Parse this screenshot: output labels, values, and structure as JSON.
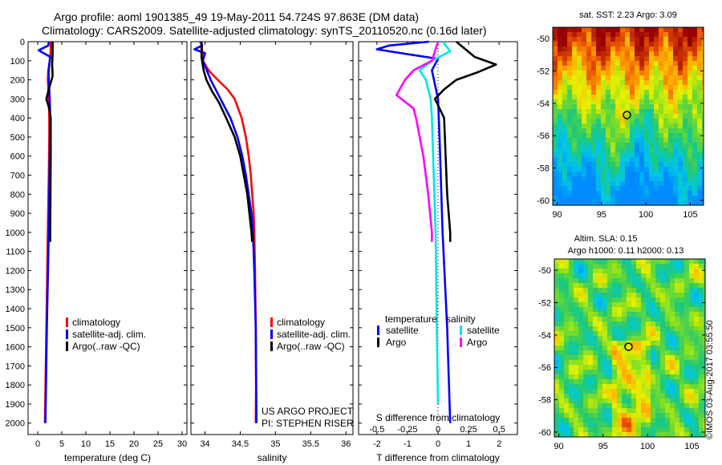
{
  "header": {
    "line1": "Argo profile: aoml 1901385_49 19-May-2011 54.724S 97.863E (DM data)",
    "line2": "Climatology: CARS2009. Satellite-adjusted climatology: synTS_20110520.nc (0.16d later)"
  },
  "credits": {
    "project": "US ARGO PROJECT",
    "pi": "PI: STEPHEN RISER",
    "imos": "©IMOS 03-Aug-2017 03:55:50"
  },
  "colors": {
    "clim": "#ff0000",
    "sat": "#0000ff",
    "argo": "#000000",
    "sat_s": "#00e5e5",
    "argo_s": "#ff00ff"
  },
  "depth_ticks": [
    "0",
    "100",
    "200",
    "300",
    "400",
    "500",
    "600",
    "700",
    "800",
    "900",
    "1000",
    "1100",
    "1200",
    "1300",
    "1400",
    "1500",
    "1600",
    "1700",
    "1800",
    "1900",
    "2000"
  ],
  "chart_data": [
    {
      "type": "line",
      "xlabel": "temperature (deg C)",
      "xlim": [
        -2,
        31
      ],
      "ylim": [
        2060,
        0
      ],
      "xticks": [
        0,
        5,
        10,
        15,
        20,
        25,
        30
      ],
      "xtick_labels": [
        "0",
        "5",
        "10",
        "15",
        "20",
        "25",
        "30"
      ],
      "legend": [
        "climatology",
        "satellite-adj. clim.",
        "Argo(..raw -QC)"
      ],
      "legend_position": "lower-center",
      "series": [
        {
          "name": "climatology",
          "color": "#ff0000",
          "depth": [
            0,
            50,
            100,
            150,
            200,
            300,
            400,
            500,
            700,
            1000,
            1500,
            2000
          ],
          "values": [
            2.7,
            2.7,
            2.5,
            2.2,
            2.1,
            2.3,
            2.4,
            2.4,
            2.3,
            2.1,
            1.8,
            1.5
          ]
        },
        {
          "name": "satellite-adj. clim.",
          "color": "#0000ff",
          "depth": [
            0,
            20,
            45,
            80,
            100,
            150,
            200,
            300,
            400,
            600,
            1000,
            1500,
            2000
          ],
          "values": [
            2.3,
            2.2,
            0.2,
            2.6,
            2.5,
            2.3,
            2.3,
            2.5,
            2.6,
            2.5,
            2.3,
            1.9,
            1.6
          ]
        },
        {
          "name": "Argo(..raw -QC)",
          "color": "#000000",
          "depth": [
            0,
            60,
            120,
            180,
            250,
            300,
            350,
            400,
            600,
            1000,
            1050
          ],
          "values": [
            3.1,
            3.1,
            3.0,
            3.1,
            2.3,
            1.8,
            2.4,
            2.7,
            2.7,
            2.6,
            2.6
          ]
        }
      ]
    },
    {
      "type": "line",
      "xlabel": "salinity",
      "xlim": [
        33.8,
        36.1
      ],
      "ylim": [
        2060,
        0
      ],
      "xticks": [
        34,
        34.5,
        35,
        35.5,
        36
      ],
      "xtick_labels": [
        "34",
        "34.5",
        "35",
        "35.5",
        "36"
      ],
      "legend": [
        "climatology",
        "satellite-adj. clim.",
        "Argo(..raw -QC)"
      ],
      "legend_position": "lower-center",
      "series": [
        {
          "name": "climatology",
          "color": "#ff0000",
          "depth": [
            0,
            100,
            150,
            200,
            250,
            300,
            400,
            500,
            600,
            700,
            800,
            900,
            1000,
            1200,
            1500,
            1800,
            2000
          ],
          "values": [
            33.95,
            33.97,
            34.05,
            34.18,
            34.32,
            34.42,
            34.52,
            34.58,
            34.62,
            34.65,
            34.67,
            34.69,
            34.7,
            34.71,
            34.72,
            34.725,
            34.72
          ]
        },
        {
          "name": "satellite-adj. clim.",
          "color": "#0000ff",
          "depth": [
            0,
            20,
            40,
            60,
            100,
            200,
            300,
            400,
            500,
            600,
            700,
            800,
            900,
            1000,
            1200,
            1500,
            2000
          ],
          "values": [
            33.93,
            33.96,
            33.85,
            34.0,
            33.97,
            34.08,
            34.22,
            34.36,
            34.46,
            34.53,
            34.58,
            34.62,
            34.66,
            34.68,
            34.7,
            34.72,
            34.73
          ]
        },
        {
          "name": "Argo(..raw -QC)",
          "color": "#000000",
          "depth": [
            0,
            80,
            150,
            200,
            260,
            320,
            400,
            500,
            600,
            800,
            1000,
            1050
          ],
          "values": [
            33.95,
            33.95,
            33.98,
            34.02,
            34.1,
            34.2,
            34.3,
            34.42,
            34.5,
            34.6,
            34.66,
            34.67
          ]
        }
      ]
    },
    {
      "type": "line",
      "xlabel": "T difference from climatology",
      "top_label": "S difference from climatology",
      "xlim": [
        -2.6,
        2.6
      ],
      "ylim": [
        2060,
        0
      ],
      "xticks": [
        -2,
        -1,
        0,
        1,
        2
      ],
      "xtick_labels": [
        "-2",
        "-1",
        "0",
        "1",
        "2"
      ],
      "top_ticks": [
        -0.5,
        -0.25,
        0,
        0.25,
        0.5
      ],
      "top_tick_labels": [
        "-0.5",
        "-0.25",
        "0",
        "0.25",
        "0.5"
      ],
      "legend_groups": [
        {
          "title": "temperature",
          "items": [
            "satellite",
            "Argo"
          ]
        },
        {
          "title": "salinity",
          "items": [
            "satellite",
            "Argo"
          ]
        }
      ],
      "series": [
        {
          "name": "satellite",
          "group": "temperature",
          "color": "#0000ff",
          "depth": [
            0,
            20,
            40,
            70,
            90,
            150,
            300,
            500,
            1000,
            1500,
            2000
          ],
          "values": [
            -0.3,
            -1.6,
            -2.0,
            -0.8,
            0.0,
            -0.2,
            0.0,
            0.05,
            0.15,
            0.3,
            0.4
          ]
        },
        {
          "name": "Argo",
          "group": "temperature",
          "color": "#000000",
          "depth": [
            0,
            80,
            120,
            160,
            200,
            250,
            300,
            400,
            600,
            800,
            1000,
            1050
          ],
          "values": [
            0.6,
            1.2,
            1.9,
            1.3,
            0.6,
            0.2,
            -0.1,
            0.2,
            0.25,
            0.3,
            0.4,
            0.4
          ]
        },
        {
          "name": "satellite",
          "group": "salinity",
          "color": "#00e5e5",
          "depth": [
            0,
            50,
            100,
            150,
            200,
            300,
            400,
            600,
            1000,
            1500,
            1900
          ],
          "values": [
            0.04,
            0.1,
            -0.05,
            -0.15,
            -0.1,
            -0.06,
            -0.05,
            -0.04,
            -0.02,
            -0.01,
            0.0
          ]
        },
        {
          "name": "Argo",
          "group": "salinity",
          "color": "#ff00ff",
          "depth": [
            0,
            100,
            150,
            200,
            280,
            350,
            400,
            600,
            800,
            1000,
            1050
          ],
          "values": [
            0.0,
            -0.05,
            -0.2,
            -0.27,
            -0.34,
            -0.2,
            -0.18,
            -0.12,
            -0.08,
            -0.05,
            -0.05
          ]
        }
      ]
    },
    {
      "type": "heatmap",
      "title": "sat. SST: 2.23 Argo: 3.09",
      "xlim": [
        89.5,
        106.5
      ],
      "ylim": [
        -60.3,
        -49.3
      ],
      "xticks": [
        90,
        95,
        100,
        105
      ],
      "xtick_labels": [
        "90",
        "95",
        "100",
        "105"
      ],
      "yticks": [
        -50,
        -52,
        -54,
        -56,
        -58,
        -60
      ],
      "ytick_labels": [
        "-50",
        "-52",
        "-54",
        "-56",
        "-58",
        "-60"
      ],
      "marker": {
        "lon": 97.863,
        "lat": -54.724
      }
    },
    {
      "type": "heatmap",
      "title": "Altim. SLA: 0.15",
      "subtitle": "Argo h1000: 0.11 h2000: 0.13",
      "xlim": [
        89.5,
        106.5
      ],
      "ylim": [
        -60.3,
        -49.3
      ],
      "xticks": [
        90,
        95,
        100,
        105
      ],
      "xtick_labels": [
        "90",
        "95",
        "100",
        "105"
      ],
      "yticks": [
        -50,
        -52,
        -54,
        -56,
        -58,
        -60
      ],
      "ytick_labels": [
        "-50",
        "-52",
        "-54",
        "-56",
        "-58",
        "-60"
      ],
      "marker": {
        "lon": 97.863,
        "lat": -54.724
      }
    }
  ]
}
